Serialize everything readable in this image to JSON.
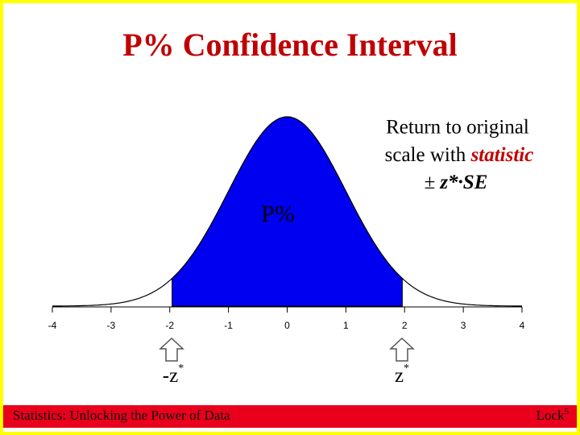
{
  "title": "P% Confidence Interval",
  "axis": {
    "ticks": [
      "-4",
      "-3",
      "-2",
      "-1",
      "0",
      "1",
      "2",
      "3",
      "4"
    ]
  },
  "center_label": "P%",
  "note": {
    "line1": "Return to original",
    "line2_prefix": "scale with ",
    "line2_emph": "statistic",
    "line3_symbol": "±",
    "line3_formula": "z*·SE"
  },
  "markers": {
    "left": {
      "base": "-z",
      "sup": "*"
    },
    "right": {
      "base": "z",
      "sup": "*"
    }
  },
  "footer": {
    "left": "Statistics: Unlocking the Power of Data",
    "right_base": "Lock",
    "right_sup": "5"
  }
}
